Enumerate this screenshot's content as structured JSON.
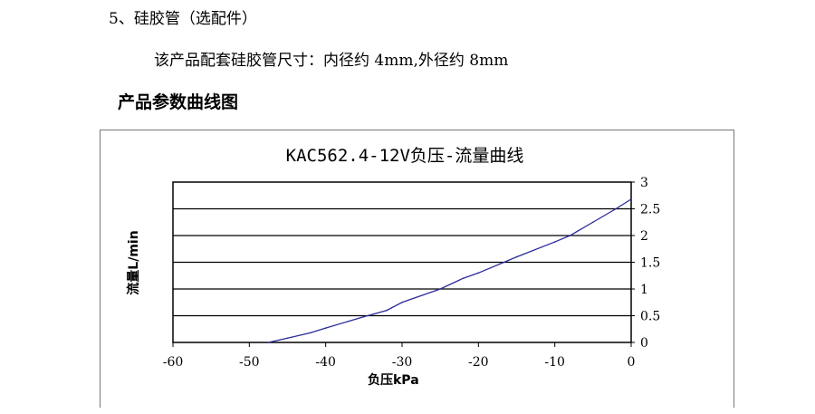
{
  "text": {
    "item_heading": "5、硅胶管（选配件）",
    "item_desc": "该产品配套硅胶管尺寸：内径约 4mm,外径约 8mm",
    "section_title": "产品参数曲线图"
  },
  "chart_data": {
    "type": "line",
    "title": "KAC562.4-12V负压-流量曲线",
    "xlabel": "负压kPa",
    "ylabel": "流量L/min",
    "xlim": [
      -60,
      0
    ],
    "ylim": [
      0,
      3
    ],
    "xticks": [
      "-60",
      "-50",
      "-40",
      "-30",
      "-20",
      "-10",
      "0"
    ],
    "yticks": [
      "0",
      "0.5",
      "1",
      "1.5",
      "2",
      "2.5",
      "3"
    ],
    "y_axis_position": "right",
    "grid": "horizontal",
    "line_color": "#2a2a9a",
    "series": [
      {
        "x": [
          -47.5,
          -45,
          -42,
          -40,
          -35,
          -32,
          -30,
          -25,
          -22,
          -20,
          -15,
          -10,
          -8,
          -5,
          -2,
          0
        ],
        "y": [
          0,
          0.08,
          0.18,
          0.27,
          0.48,
          0.6,
          0.75,
          1.0,
          1.2,
          1.3,
          1.6,
          1.88,
          2.0,
          2.25,
          2.5,
          2.68
        ]
      }
    ]
  }
}
